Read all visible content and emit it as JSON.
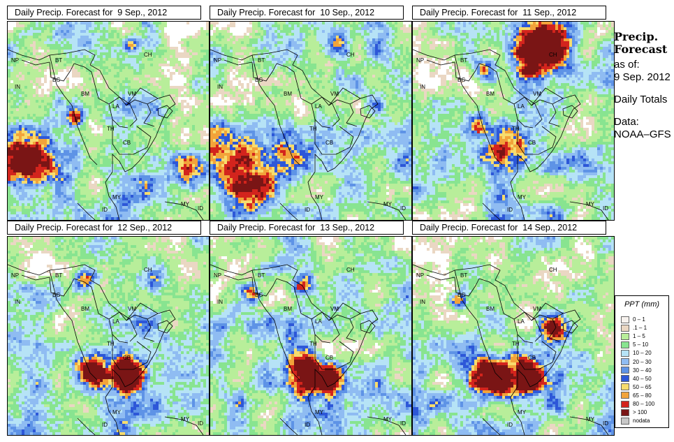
{
  "panels": [
    {
      "title": "Daily Precip. Forecast for  9 Sep., 2012"
    },
    {
      "title": "Daily Precip. Forecast for  10 Sep., 2012"
    },
    {
      "title": "Daily Precip. Forecast for  11 Sep., 2012"
    },
    {
      "title": "Daily Precip. Forecast for  12 Sep., 2012"
    },
    {
      "title": "Daily Precip. Forecast for  13 Sep., 2012"
    },
    {
      "title": "Daily Precip. Forecast for  14 Sep., 2012"
    }
  ],
  "country_labels": {
    "np": "NP",
    "bt": "BT",
    "bg": "BG",
    "in": "IN",
    "ch": "CH",
    "bm": "BM",
    "vm": "VM",
    "la": "LA",
    "th": "TH",
    "cb": "CB",
    "my": "MY",
    "id": "ID"
  },
  "sidebar": {
    "title": "Precip. Forecast",
    "as_of_label": "as of:",
    "date": "9 Sep. 2012",
    "totals": "Daily Totals",
    "data_source": "Data: NOAA–GFS"
  },
  "legend": {
    "title": "PPT (mm)",
    "items": [
      {
        "label": "0 – 1",
        "color": "#f7f2ee"
      },
      {
        "label": ".1 – 1",
        "color": "#ead7c3"
      },
      {
        "label": "1 – 5",
        "color": "#b8ee9a"
      },
      {
        "label": "5 – 10",
        "color": "#88e490"
      },
      {
        "label": "10 – 20",
        "color": "#b6e3f6"
      },
      {
        "label": "20 – 30",
        "color": "#8fbcf2"
      },
      {
        "label": "30 – 40",
        "color": "#5e93e6"
      },
      {
        "label": "40 – 50",
        "color": "#2d57d8"
      },
      {
        "label": "50 – 65",
        "color": "#f7dc6e"
      },
      {
        "label": "65 – 80",
        "color": "#f2a33a"
      },
      {
        "label": "80 – 100",
        "color": "#d3241d"
      },
      {
        "label": "> 100",
        "color": "#7a1515"
      },
      {
        "label": "nodata",
        "color": "#c8c8c8"
      }
    ]
  }
}
